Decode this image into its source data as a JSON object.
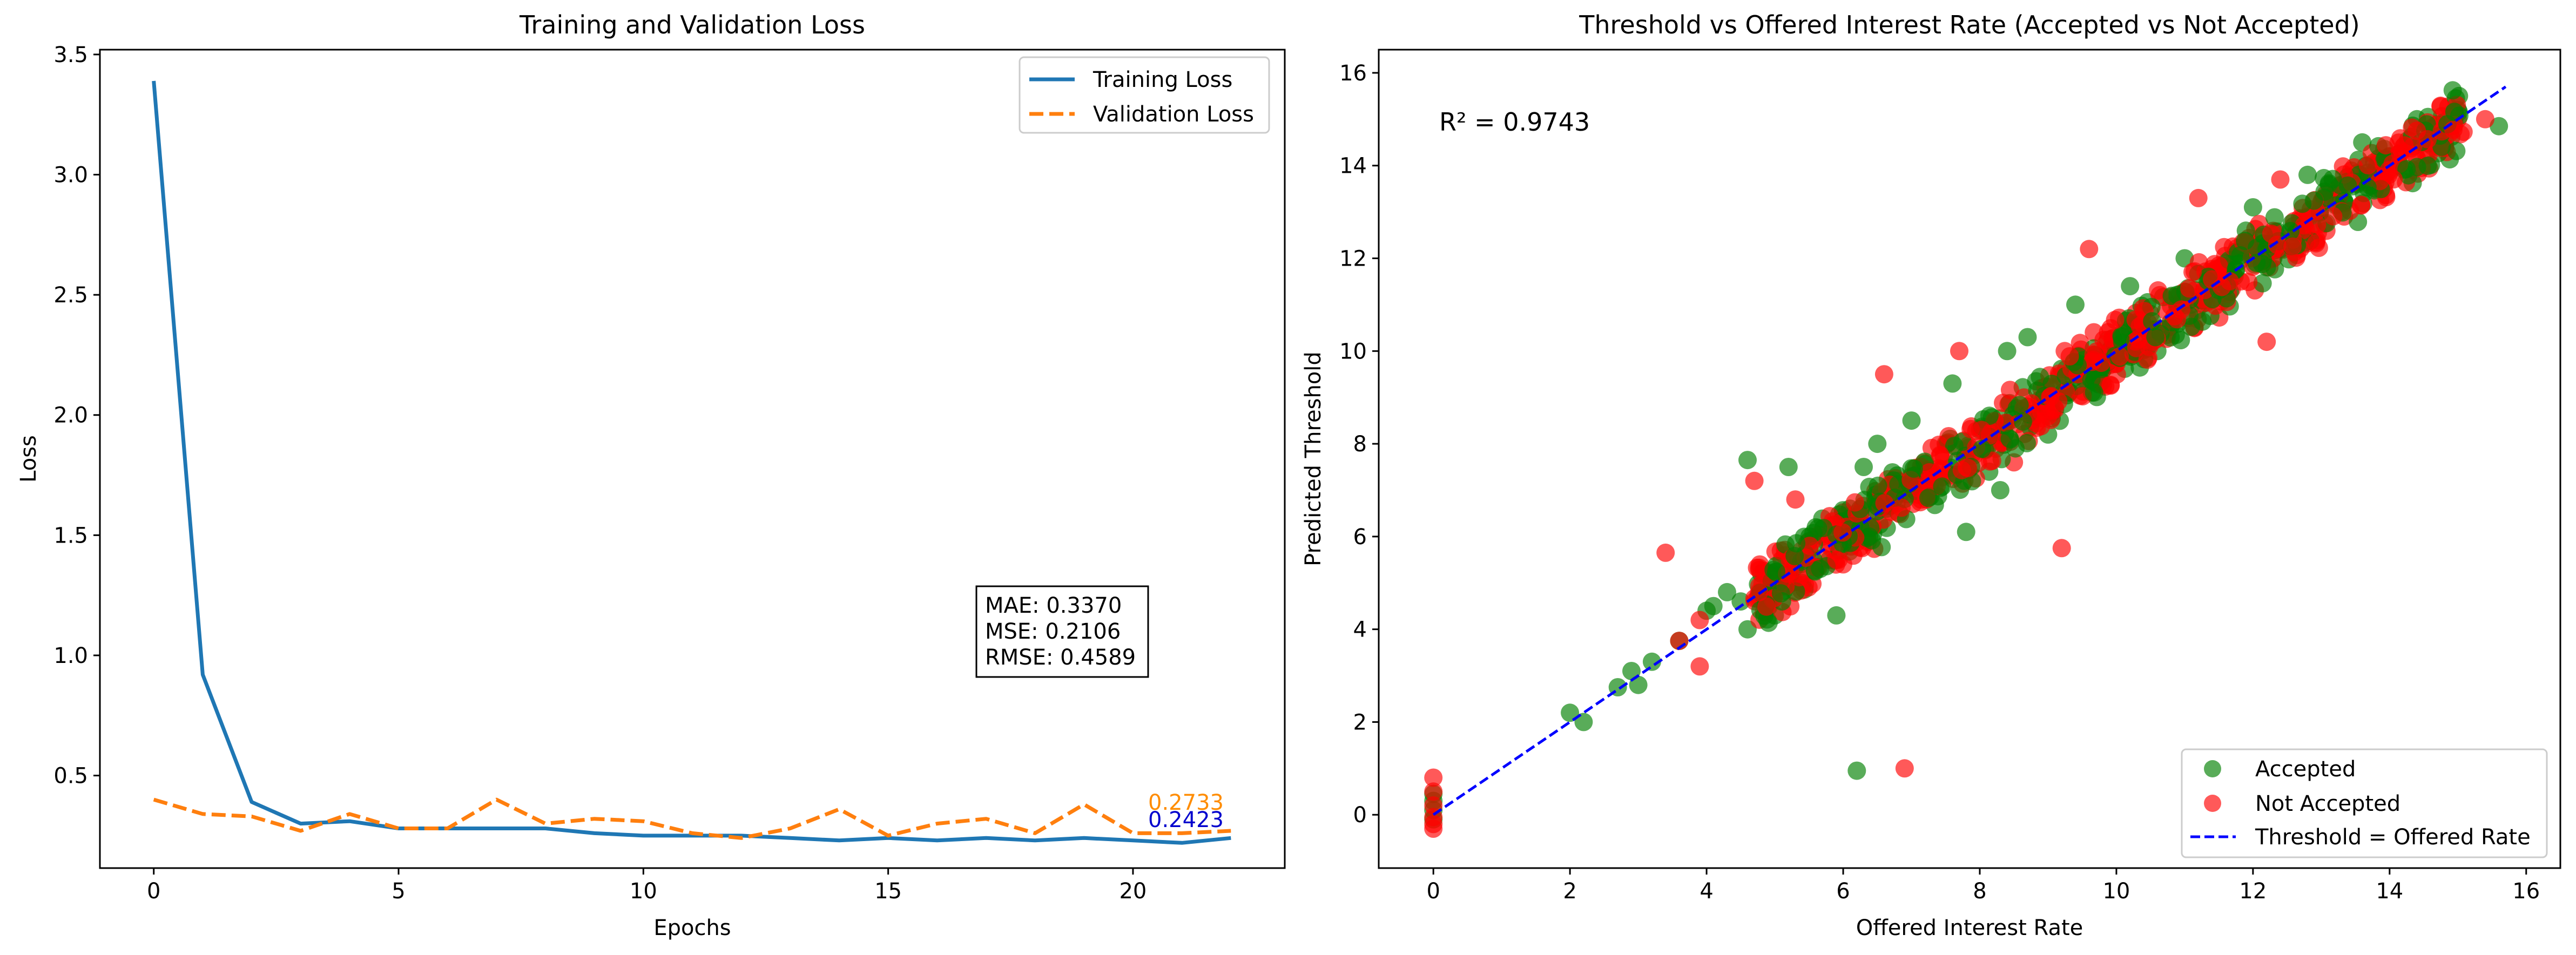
{
  "chart_data": [
    {
      "type": "line",
      "title": "Training and Validation Loss",
      "xlabel": "Epochs",
      "ylabel": "Loss",
      "xlim": [
        -1.1,
        23.1
      ],
      "ylim": [
        0.115,
        3.52
      ],
      "xticks": [
        0,
        5,
        10,
        15,
        20
      ],
      "yticks": [
        0.5,
        1.0,
        1.5,
        2.0,
        2.5,
        3.0,
        3.5
      ],
      "x": [
        0,
        1,
        2,
        3,
        4,
        5,
        6,
        7,
        8,
        9,
        10,
        11,
        12,
        13,
        14,
        15,
        16,
        17,
        18,
        19,
        20,
        21,
        22
      ],
      "series": [
        {
          "name": "Training Loss",
          "color": "#1f77b4",
          "style": "solid",
          "values": [
            3.39,
            0.92,
            0.39,
            0.3,
            0.31,
            0.28,
            0.28,
            0.28,
            0.28,
            0.26,
            0.25,
            0.25,
            0.25,
            0.24,
            0.23,
            0.24,
            0.23,
            0.24,
            0.23,
            0.24,
            0.23,
            0.22,
            0.24
          ]
        },
        {
          "name": "Validation Loss",
          "color": "#ff7f0e",
          "style": "dashed",
          "values": [
            0.4,
            0.34,
            0.33,
            0.27,
            0.34,
            0.28,
            0.28,
            0.4,
            0.3,
            0.32,
            0.31,
            0.26,
            0.24,
            0.28,
            0.36,
            0.25,
            0.3,
            0.32,
            0.26,
            0.38,
            0.26,
            0.26,
            0.27
          ]
        }
      ],
      "legend_position": "top-right",
      "end_labels": [
        {
          "text": "0.2733",
          "color": "#ff8c00"
        },
        {
          "text": "0.2423",
          "color": "#0000cd"
        }
      ],
      "metrics_box": [
        "MAE: 0.3370",
        "MSE: 0.2106",
        "RMSE: 0.4589"
      ]
    },
    {
      "type": "scatter",
      "title": "Threshold vs Offered Interest Rate (Accepted vs Not Accepted)",
      "xlabel": "Offered Interest Rate",
      "ylabel": "Predicted Threshold",
      "xlim": [
        -0.8,
        16.5
      ],
      "ylim": [
        -1.15,
        16.5
      ],
      "xticks": [
        0,
        2,
        4,
        6,
        8,
        10,
        12,
        14,
        16
      ],
      "yticks": [
        0,
        2,
        4,
        6,
        8,
        10,
        12,
        14,
        16
      ],
      "annotation": "R² = 0.9743",
      "series": [
        {
          "name": "Accepted",
          "color": "#008000",
          "alpha": 0.65,
          "points": [
            [
              0,
              0.3
            ],
            [
              0,
              0.1
            ],
            [
              0,
              0.45
            ],
            [
              0,
              -0.1
            ],
            [
              2.0,
              2.2
            ],
            [
              2.2,
              2.0
            ],
            [
              2.7,
              2.75
            ],
            [
              2.9,
              3.1
            ],
            [
              3.0,
              2.8
            ],
            [
              3.2,
              3.3
            ],
            [
              3.6,
              3.75
            ],
            [
              4.0,
              4.4
            ],
            [
              4.1,
              4.5
            ],
            [
              4.3,
              4.8
            ],
            [
              4.5,
              4.6
            ],
            [
              4.6,
              4.0
            ],
            [
              4.6,
              7.65
            ],
            [
              4.8,
              5.2
            ],
            [
              5.0,
              4.3
            ],
            [
              5.2,
              7.5
            ],
            [
              5.4,
              5.0
            ],
            [
              5.6,
              6.2
            ],
            [
              5.8,
              5.5
            ],
            [
              5.9,
              4.3
            ],
            [
              6.2,
              0.95
            ],
            [
              6.3,
              7.5
            ],
            [
              6.5,
              8.0
            ],
            [
              7.0,
              8.5
            ],
            [
              7.2,
              6.9
            ],
            [
              7.6,
              9.3
            ],
            [
              7.8,
              6.1
            ],
            [
              8.3,
              7.0
            ],
            [
              8.4,
              10.0
            ],
            [
              8.7,
              10.3
            ],
            [
              9.0,
              8.2
            ],
            [
              9.4,
              11.0
            ],
            [
              9.8,
              9.6
            ],
            [
              10.2,
              11.4
            ],
            [
              10.6,
              10.0
            ],
            [
              11.0,
              12.0
            ],
            [
              11.4,
              11.1
            ],
            [
              12.0,
              13.1
            ],
            [
              12.4,
              12.2
            ],
            [
              12.8,
              13.8
            ],
            [
              13.2,
              13.4
            ],
            [
              13.6,
              14.5
            ],
            [
              14.0,
              14.2
            ],
            [
              14.4,
              15.0
            ],
            [
              14.6,
              14.5
            ],
            [
              15.0,
              15.2
            ],
            [
              15.6,
              14.85
            ],
            [
              5.5,
              5.9
            ],
            [
              6.1,
              6.6
            ],
            [
              6.8,
              7.2
            ],
            [
              7.3,
              7.4
            ],
            [
              8.0,
              8.3
            ],
            [
              8.8,
              8.6
            ],
            [
              9.5,
              9.7
            ],
            [
              10.4,
              10.5
            ],
            [
              11.6,
              11.9
            ],
            [
              12.6,
              12.7
            ],
            [
              13.8,
              13.9
            ]
          ]
        },
        {
          "name": "Not Accepted",
          "color": "#ff0000",
          "alpha": 0.65,
          "points": [
            [
              0,
              0.8
            ],
            [
              0,
              0.5
            ],
            [
              0,
              0.2
            ],
            [
              0,
              -0.05
            ],
            [
              0,
              -0.2
            ],
            [
              0,
              -0.3
            ],
            [
              3.4,
              5.65
            ],
            [
              3.6,
              3.75
            ],
            [
              3.9,
              4.2
            ],
            [
              3.9,
              3.2
            ],
            [
              4.7,
              7.2
            ],
            [
              4.9,
              5.2
            ],
            [
              5.1,
              5.5
            ],
            [
              5.3,
              6.8
            ],
            [
              5.7,
              6.0
            ],
            [
              6.0,
              5.4
            ],
            [
              6.4,
              6.6
            ],
            [
              6.6,
              9.5
            ],
            [
              6.9,
              1.0
            ],
            [
              7.0,
              7.3
            ],
            [
              7.5,
              8.0
            ],
            [
              7.7,
              10.0
            ],
            [
              8.2,
              8.4
            ],
            [
              8.5,
              7.6
            ],
            [
              8.9,
              9.2
            ],
            [
              9.2,
              5.75
            ],
            [
              9.4,
              9.5
            ],
            [
              9.6,
              12.2
            ],
            [
              10.1,
              10.4
            ],
            [
              10.5,
              10.8
            ],
            [
              10.9,
              11.0
            ],
            [
              11.2,
              13.3
            ],
            [
              11.6,
              11.8
            ],
            [
              12.2,
              10.2
            ],
            [
              12.0,
              12.3
            ],
            [
              12.6,
              12.8
            ],
            [
              12.4,
              13.7
            ],
            [
              13.0,
              13.2
            ],
            [
              13.4,
              13.6
            ],
            [
              13.8,
              13.9
            ],
            [
              14.2,
              14.4
            ],
            [
              14.6,
              14.8
            ],
            [
              15.0,
              15.0
            ],
            [
              15.4,
              15.0
            ],
            [
              6.3,
              6.2
            ],
            [
              7.1,
              6.9
            ],
            [
              7.9,
              7.8
            ],
            [
              8.7,
              8.8
            ],
            [
              9.9,
              10.0
            ],
            [
              11.4,
              11.5
            ],
            [
              12.8,
              12.9
            ],
            [
              14.0,
              14.2
            ]
          ]
        }
      ],
      "reference_line": {
        "name": "Threshold = Offered Rate",
        "color": "#0000ff",
        "style": "dashed",
        "from": [
          0,
          0
        ],
        "to": [
          15.7,
          15.7
        ]
      },
      "legend_position": "bottom-right"
    }
  ]
}
